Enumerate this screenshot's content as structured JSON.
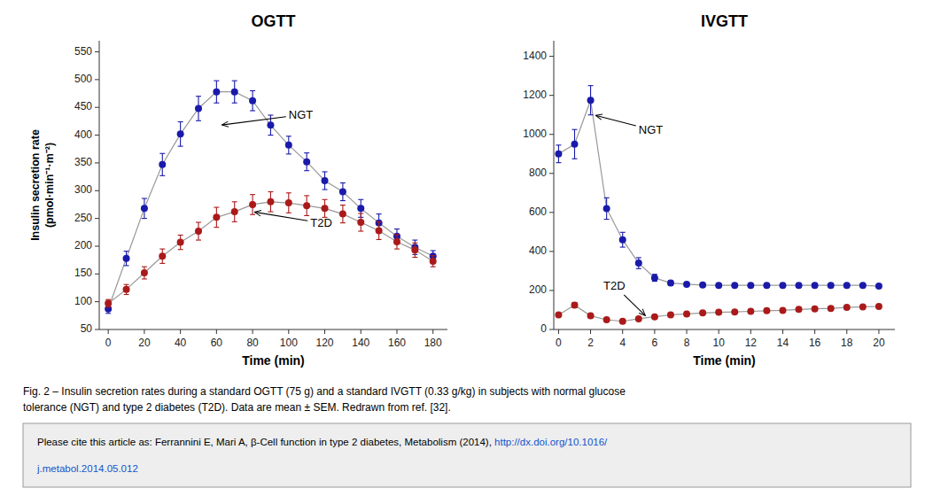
{
  "chart_data": [
    {
      "type": "line",
      "title": "OGTT",
      "xlabel": "Time (min)",
      "ylabel": "Insulin secretion rate\n(pmol·min⁻¹·m⁻²)",
      "x": [
        0,
        10,
        20,
        30,
        40,
        50,
        60,
        70,
        80,
        90,
        100,
        110,
        120,
        130,
        140,
        150,
        160,
        170,
        180
      ],
      "xlim": [
        -5,
        188
      ],
      "xticks": [
        0,
        20,
        40,
        60,
        80,
        100,
        120,
        140,
        160,
        180
      ],
      "ylim": [
        50,
        570
      ],
      "yticks": [
        50,
        100,
        150,
        200,
        250,
        300,
        350,
        400,
        450,
        500,
        550
      ],
      "marker": "circle",
      "grid": false,
      "series": [
        {
          "color": "#1a1aaa",
          "values": [
            87,
            178,
            268,
            347,
            402,
            448,
            478,
            478,
            462,
            418,
            382,
            352,
            318,
            298,
            268,
            242,
            218,
            198,
            182
          ],
          "errors": [
            8,
            13,
            18,
            20,
            22,
            22,
            20,
            20,
            18,
            18,
            16,
            16,
            16,
            16,
            16,
            16,
            13,
            13,
            10
          ]
        },
        {
          "color": "#aa1a1a",
          "values": [
            97,
            122,
            152,
            182,
            207,
            227,
            252,
            262,
            275,
            280,
            278,
            273,
            268,
            258,
            243,
            228,
            208,
            193,
            173
          ],
          "errors": [
            7,
            9,
            11,
            13,
            13,
            16,
            18,
            18,
            18,
            18,
            18,
            18,
            16,
            16,
            16,
            16,
            13,
            13,
            10
          ]
        }
      ],
      "annotations": [
        {
          "text": "NGT",
          "xy": [
            62,
            418
          ],
          "xytext": [
            100,
            435
          ]
        },
        {
          "text": "T2D",
          "xy": [
            80,
            262
          ],
          "xytext": [
            112,
            240
          ]
        }
      ]
    },
    {
      "type": "line",
      "title": "IVGTT",
      "xlabel": "Time (min)",
      "x": [
        0,
        1,
        2,
        3,
        4,
        5,
        6,
        7,
        8,
        9,
        10,
        11,
        12,
        13,
        14,
        15,
        16,
        17,
        18,
        19,
        20
      ],
      "xlim": [
        -0.3,
        21
      ],
      "xticks": [
        0,
        2,
        4,
        6,
        8,
        10,
        12,
        14,
        16,
        18,
        20
      ],
      "ylim": [
        0,
        1480
      ],
      "yticks": [
        0,
        200,
        400,
        600,
        800,
        1000,
        1200,
        1400
      ],
      "marker": "circle",
      "grid": false,
      "series": [
        {
          "color": "#1a1aaa",
          "values": [
            900,
            950,
            1175,
            620,
            460,
            340,
            265,
            238,
            232,
            228,
            226,
            226,
            226,
            226,
            226,
            226,
            226,
            226,
            226,
            226,
            222
          ],
          "errors": [
            45,
            75,
            75,
            55,
            38,
            28,
            18,
            12,
            10,
            8,
            8,
            8,
            8,
            8,
            8,
            8,
            8,
            8,
            8,
            8,
            8
          ]
        },
        {
          "color": "#aa1a1a",
          "values": [
            75,
            125,
            70,
            50,
            42,
            55,
            65,
            75,
            80,
            85,
            88,
            90,
            93,
            96,
            98,
            103,
            106,
            108,
            113,
            116,
            118
          ],
          "errors": [
            7,
            13,
            9,
            7,
            5,
            7,
            7,
            7,
            7,
            7,
            7,
            7,
            7,
            7,
            7,
            7,
            7,
            7,
            7,
            7,
            7
          ]
        }
      ],
      "annotations": [
        {
          "text": "NGT",
          "xy": [
            2.2,
            1100
          ],
          "xytext": [
            5.0,
            1020
          ]
        },
        {
          "text": "T2D",
          "xy": [
            5.5,
            65
          ],
          "xytext": [
            2.8,
            220
          ]
        }
      ]
    }
  ],
  "caption": [
    "Fig. 2 – Insulin secretion rates during a standard OGTT (75 g) and a standard IVGTT (0.33 g/kg) in subjects with normal glucose",
    "tolerance (NGT) and type 2 diabetes (T2D). Data are mean ± SEM. Redrawn from ref. [32]."
  ],
  "citation": [
    "Please cite this article as: Ferrannini E, Mari A, β-Cell function in type 2 diabetes, Metabolism (2014), ",
    "http://dx.doi.org/10.1016/",
    "j.metabol.2014.05.012"
  ]
}
